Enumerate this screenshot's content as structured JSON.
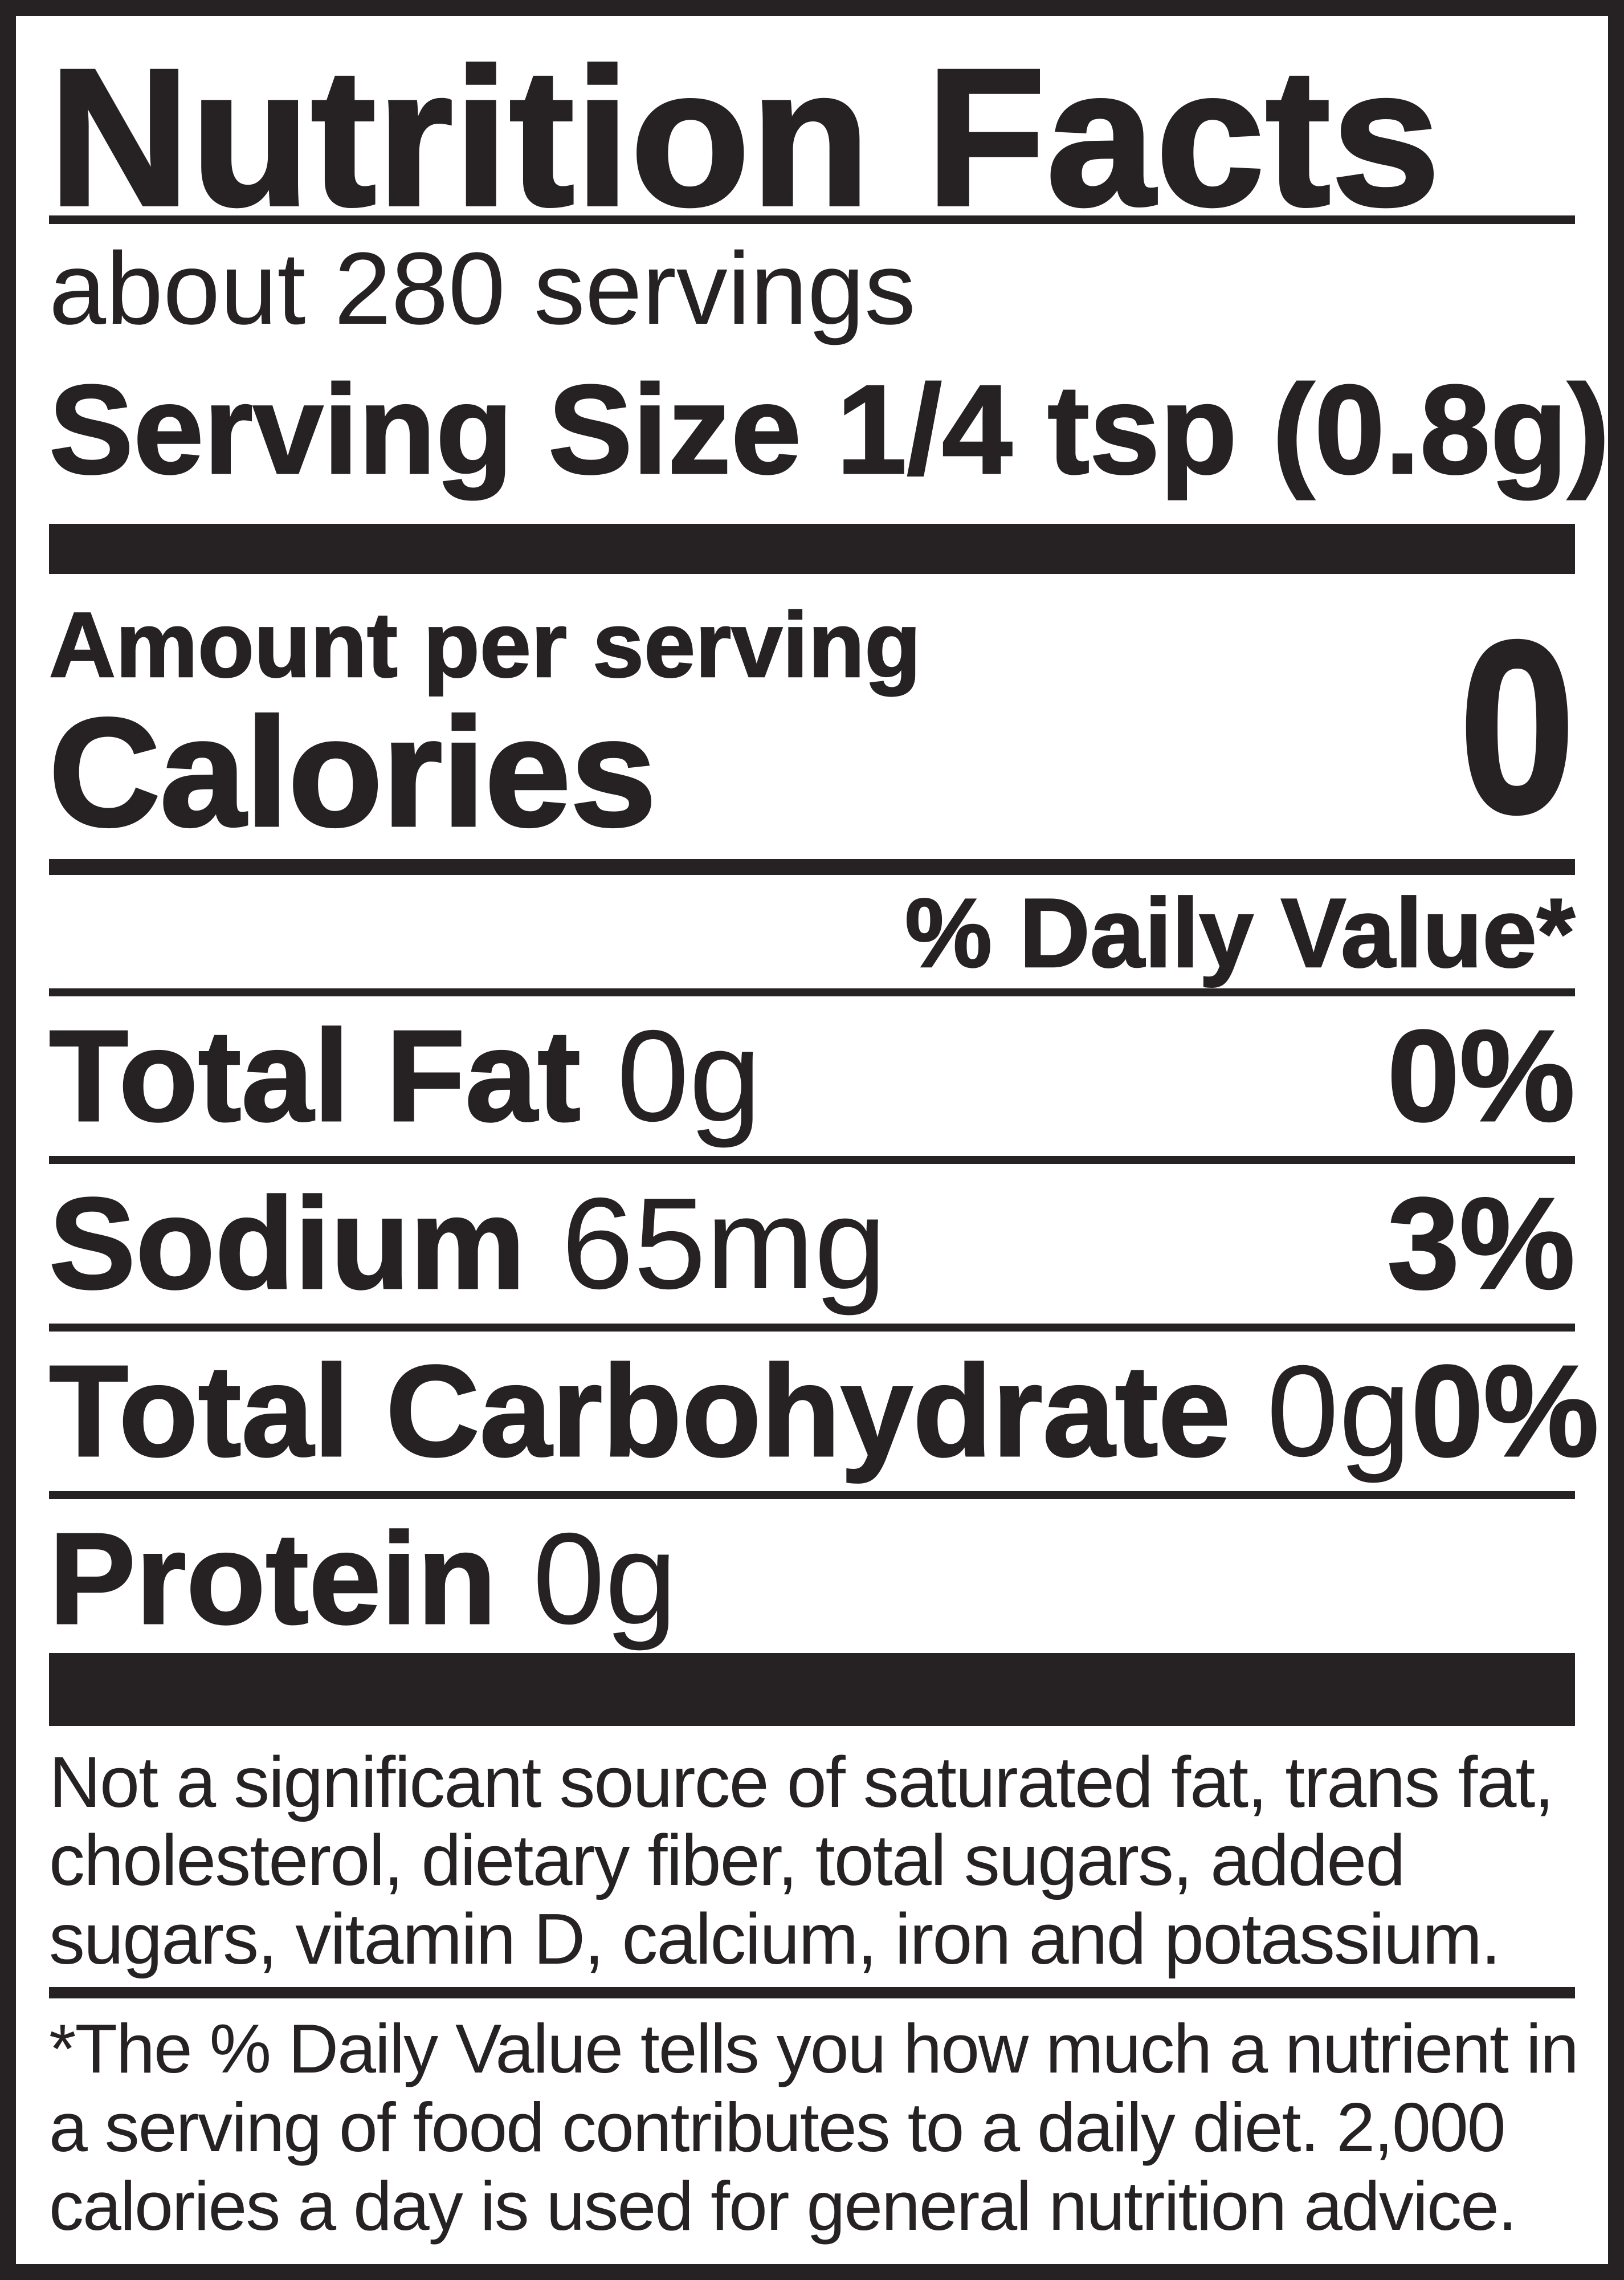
{
  "label": {
    "title": "Nutrition Facts",
    "servings_per_container": "about 280 servings",
    "serving_size": "Serving Size 1/4 tsp (0.8g)",
    "amount_per_serving": "Amount per serving",
    "calories_label": "Calories",
    "calories_value": "0",
    "daily_value_header": "% Daily Value*",
    "nutrients": [
      {
        "name": "Total Fat",
        "amount": "0g",
        "dv": "0%"
      },
      {
        "name": "Sodium",
        "amount": "65mg",
        "dv": "3%"
      },
      {
        "name": "Total Carbohydrate",
        "amount": "0g",
        "dv": "0%"
      },
      {
        "name": "Protein",
        "amount": "0g",
        "dv": ""
      }
    ],
    "not_significant": {
      "lines": [
        "Not a significant source of saturated fat, trans fat,",
        "cholesterol, dietary fiber, total sugars, added",
        "sugars, vitamin D, calcium, iron and potassium."
      ]
    },
    "footnote": {
      "lines": [
        "*The % Daily Value tells you how much a nutrient in",
        "a serving of food contributes to a daily diet. 2,000",
        "calories a day is used for general nutrition advice."
      ]
    },
    "colors": {
      "ink": "#262223",
      "background": "#ffffff"
    }
  }
}
